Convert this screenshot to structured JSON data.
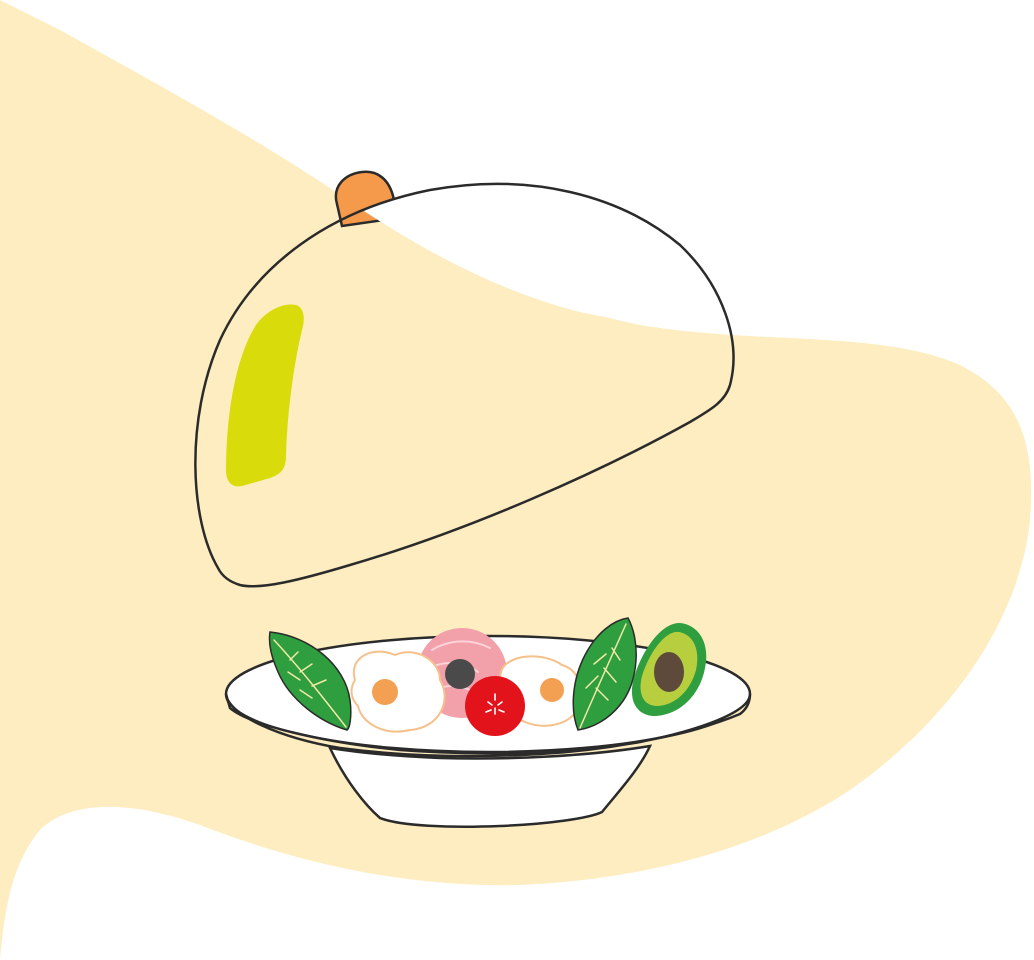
{
  "colors": {
    "background": "#ffffff",
    "blob": "#FDEDC1",
    "outline": "#2B2B2B",
    "dome_fill": "#ffffff",
    "handle": "#F49A4A",
    "dome_highlight": "#D9DB0A",
    "plate_fill": "#ffffff",
    "leaf": "#2E9E3E",
    "leaf_vein": "#F3E9A7",
    "egg_white": "#ffffff",
    "egg_edge": "#F6C08A",
    "yolk": "#F3A052",
    "ham": "#F2A0AA",
    "ham_marbling": "#FBD3D8",
    "olive": "#4A4A4A",
    "tomato": "#E3131B",
    "avocado_skin": "#2E9E3E",
    "avocado_flesh": "#B7CF3F",
    "avocado_pit": "#5E4A3B"
  },
  "icons": {
    "cloche": "serving-cloche-icon",
    "bowl": "bowl-icon",
    "leaf": "spinach-leaf-icon",
    "egg": "fried-egg-icon",
    "ham": "ham-slice-icon",
    "olive": "olive-icon",
    "tomato": "tomato-icon",
    "avocado": "avocado-half-icon"
  }
}
